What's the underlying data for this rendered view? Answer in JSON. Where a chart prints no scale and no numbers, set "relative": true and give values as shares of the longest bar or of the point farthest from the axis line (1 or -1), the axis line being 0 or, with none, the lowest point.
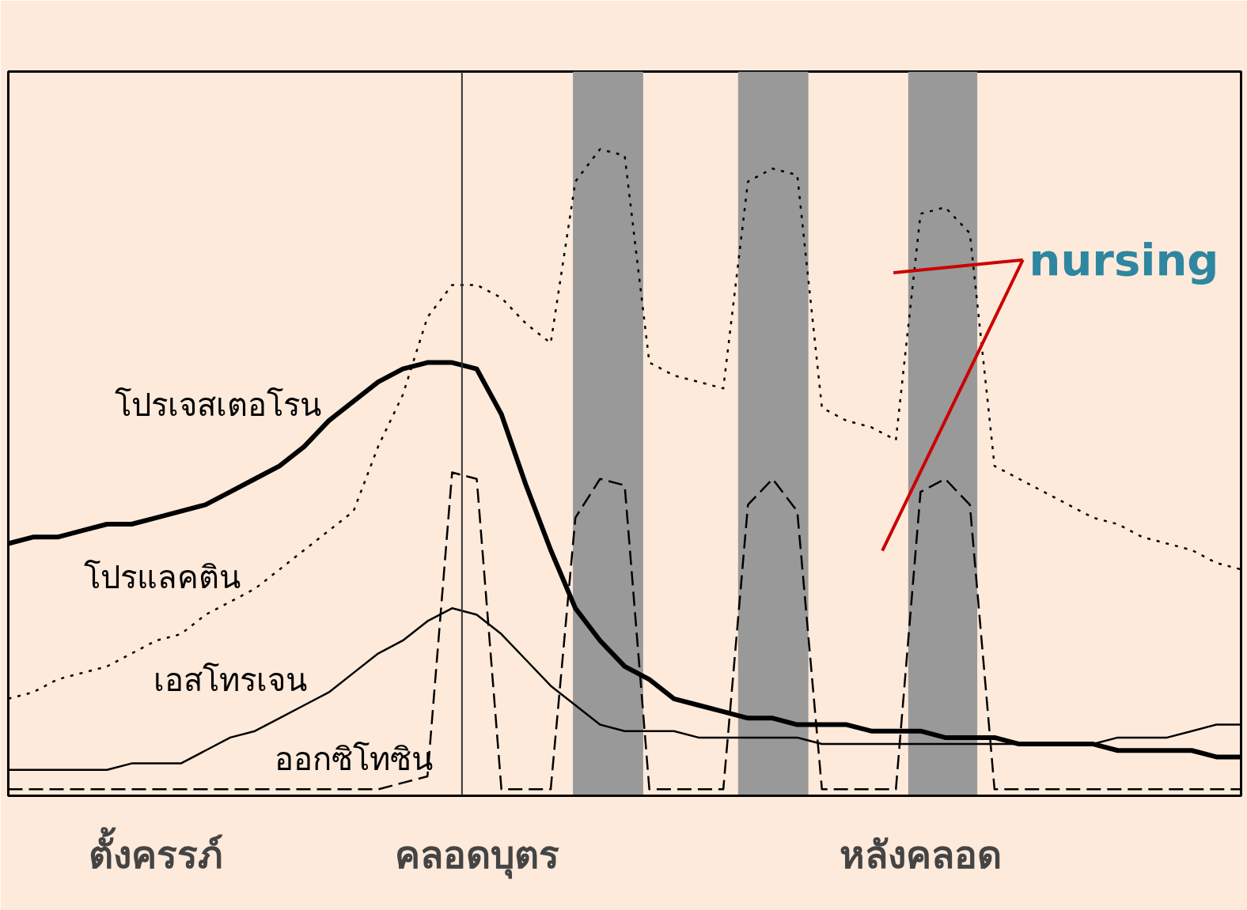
{
  "chart_data": {
    "type": "line",
    "relative": true,
    "tick_labels": "x",
    "grid": false,
    "marker": "none",
    "categories": [
      null,
      null,
      null,
      null,
      null,
      null,
      "ตั้งครรภ์",
      null,
      null,
      null,
      null,
      null,
      null,
      null,
      null,
      null,
      null,
      null,
      null,
      "คลอดบุตร",
      null,
      null,
      null,
      null,
      null,
      null,
      null,
      null,
      null,
      null,
      null,
      null,
      null,
      null,
      null,
      null,
      null,
      "หลังคลอด",
      null,
      null,
      null,
      null,
      null,
      null,
      null,
      null,
      null,
      null,
      null,
      null,
      null
    ],
    "series": [
      {
        "name": "โปรเจสเตอโรน",
        "color": "#000000",
        "line_style": "solid",
        "values": [
          0.39,
          0.4,
          0.4,
          0.41,
          0.42,
          0.42,
          0.43,
          0.44,
          0.45,
          0.47,
          0.49,
          0.51,
          0.54,
          0.58,
          0.61,
          0.64,
          0.66,
          0.67,
          0.67,
          0.66,
          0.59,
          0.48,
          0.38,
          0.29,
          0.24,
          0.2,
          0.18,
          0.15,
          0.14,
          0.13,
          0.12,
          0.12,
          0.11,
          0.11,
          0.11,
          0.1,
          0.1,
          0.1,
          0.09,
          0.09,
          0.09,
          0.08,
          0.08,
          0.08,
          0.08,
          0.07,
          0.07,
          0.07,
          0.07,
          0.06,
          0.06
        ]
      },
      {
        "name": "โปรแลคติน",
        "color": "#000000",
        "line_style": "dotted",
        "values": [
          0.15,
          0.16,
          0.18,
          0.19,
          0.2,
          0.22,
          0.24,
          0.25,
          0.28,
          0.3,
          0.32,
          0.35,
          0.38,
          0.41,
          0.44,
          0.54,
          0.62,
          0.74,
          0.79,
          0.79,
          0.77,
          0.73,
          0.7,
          0.95,
          1,
          0.99,
          0.67,
          0.65,
          0.64,
          0.63,
          0.95,
          0.97,
          0.96,
          0.6,
          0.58,
          0.57,
          0.55,
          0.9,
          0.91,
          0.87,
          0.51,
          0.49,
          0.47,
          0.45,
          0.43,
          0.42,
          0.4,
          0.39,
          0.38,
          0.36,
          0.35
        ]
      },
      {
        "name": "เอสโทรเจน",
        "color": "#000000",
        "line_style": "solid",
        "values": [
          0.04,
          0.04,
          0.04,
          0.04,
          0.04,
          0.05,
          0.05,
          0.05,
          0.07,
          0.09,
          0.1,
          0.12,
          0.14,
          0.16,
          0.19,
          0.22,
          0.24,
          0.27,
          0.29,
          0.28,
          0.25,
          0.21,
          0.17,
          0.14,
          0.11,
          0.1,
          0.1,
          0.1,
          0.09,
          0.09,
          0.09,
          0.09,
          0.09,
          0.08,
          0.08,
          0.08,
          0.08,
          0.08,
          0.08,
          0.08,
          0.08,
          0.08,
          0.08,
          0.08,
          0.08,
          0.09,
          0.09,
          0.09,
          0.1,
          0.11,
          0.11
        ]
      },
      {
        "name": "ออกซิโทซิน",
        "color": "#000000",
        "line_style": "dashed",
        "values": [
          0.01,
          0.01,
          0.01,
          0.01,
          0.01,
          0.01,
          0.01,
          0.01,
          0.01,
          0.01,
          0.01,
          0.01,
          0.01,
          0.01,
          0.01,
          0.01,
          0.02,
          0.03,
          0.5,
          0.49,
          0.01,
          0.01,
          0.01,
          0.43,
          0.49,
          0.48,
          0.01,
          0.01,
          0.01,
          0.01,
          0.45,
          0.49,
          0.44,
          0.01,
          0.01,
          0.01,
          0.01,
          0.47,
          0.49,
          0.45,
          0.01,
          0.01,
          0.01,
          0.01,
          0.01,
          0.01,
          0.01,
          0.01,
          0.01,
          0.01,
          0.01
        ]
      }
    ],
    "annotations": [
      "nursing"
    ]
  }
}
